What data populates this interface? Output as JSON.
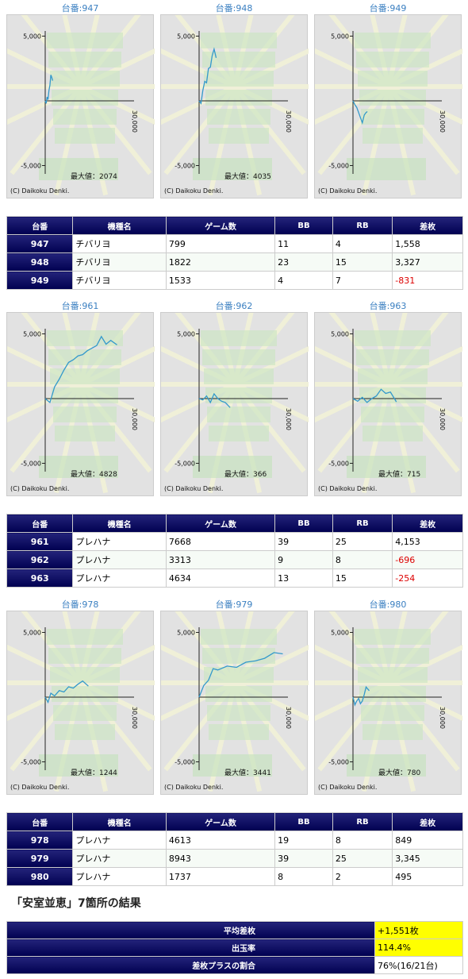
{
  "groups": [
    {
      "graphs": [
        {
          "title": "台番:947",
          "yticks": [
            {
              "value": 5000,
              "label": "5,000"
            },
            {
              "value": -5000,
              "label": "-5,000"
            }
          ],
          "x_label": "30,000",
          "max_label": "最大値：2074",
          "copyright": "(C) Daikoku Denki.",
          "x": [
            0,
            100,
            200,
            300,
            400,
            500,
            600,
            700,
            799
          ],
          "values": [
            0,
            -200,
            300,
            100,
            800,
            1200,
            2000,
            1800,
            1558
          ]
        },
        {
          "title": "台番:948",
          "yticks": [
            {
              "value": 5000,
              "label": "5,000"
            },
            {
              "value": -5000,
              "label": "-5,000"
            }
          ],
          "x_label": "30,000",
          "max_label": "最大値：4035",
          "copyright": "(C) Daikoku Denki.",
          "x": [
            0,
            200,
            400,
            600,
            800,
            1000,
            1200,
            1400,
            1600,
            1822
          ],
          "values": [
            0,
            -200,
            800,
            1500,
            1400,
            2500,
            2600,
            3500,
            4000,
            3327
          ]
        },
        {
          "title": "台番:949",
          "yticks": [
            {
              "value": 5000,
              "label": "5,000"
            },
            {
              "value": -5000,
              "label": "-5,000"
            }
          ],
          "x_label": "30,000",
          "copyright": "(C) Daikoku Denki.",
          "x": [
            0,
            200,
            400,
            600,
            800,
            1000,
            1200,
            1400,
            1533
          ],
          "values": [
            0,
            -300,
            -500,
            -900,
            -1300,
            -1700,
            -1100,
            -900,
            -831
          ]
        }
      ],
      "table": {
        "header": [
          "台番",
          "機種名",
          "ゲーム数",
          "BB",
          "RB",
          "差枚"
        ],
        "rows": [
          [
            "947",
            "チバリヨ",
            "799",
            "11",
            "4",
            "1,558"
          ],
          [
            "948",
            "チバリヨ",
            "1822",
            "23",
            "15",
            "3,327"
          ],
          [
            "949",
            "チバリヨ",
            "1533",
            "4",
            "7",
            "-831"
          ]
        ]
      }
    },
    {
      "graphs": [
        {
          "title": "台番:961",
          "yticks": [
            {
              "value": 5000,
              "label": "5,000"
            },
            {
              "value": -5000,
              "label": "-5,000"
            }
          ],
          "x_label": "30,000",
          "max_label": "最大値：4828",
          "copyright": "(C) Daikoku Denki.",
          "x": [
            0,
            500,
            1000,
            1500,
            2000,
            2500,
            3000,
            3500,
            4000,
            4500,
            5000,
            5500,
            6000,
            6500,
            7000,
            7668
          ],
          "values": [
            0,
            -300,
            900,
            1500,
            2200,
            2800,
            3000,
            3300,
            3400,
            3700,
            3900,
            4100,
            4800,
            4200,
            4500,
            4153
          ]
        },
        {
          "title": "台番:962",
          "yticks": [
            {
              "value": 5000,
              "label": "5,000"
            },
            {
              "value": -5000,
              "label": "-5,000"
            }
          ],
          "x_label": "30,000",
          "max_label": "最大値：366",
          "copyright": "(C) Daikoku Denki.",
          "x": [
            0,
            400,
            800,
            1200,
            1600,
            2000,
            2400,
            2800,
            3313
          ],
          "values": [
            0,
            -100,
            200,
            -300,
            366,
            0,
            -200,
            -300,
            -696
          ]
        },
        {
          "title": "台番:963",
          "yticks": [
            {
              "value": 5000,
              "label": "5,000"
            },
            {
              "value": -5000,
              "label": "-5,000"
            }
          ],
          "x_label": "30,000",
          "max_label": "最大値：715",
          "copyright": "(C) Daikoku Denki.",
          "x": [
            0,
            500,
            1000,
            1500,
            2000,
            2500,
            3000,
            3500,
            4000,
            4634
          ],
          "values": [
            0,
            -200,
            100,
            -300,
            0,
            200,
            715,
            400,
            500,
            -254
          ]
        }
      ],
      "table": {
        "header": [
          "台番",
          "機種名",
          "ゲーム数",
          "BB",
          "RB",
          "差枚"
        ],
        "rows": [
          [
            "961",
            "プレハナ",
            "7668",
            "39",
            "25",
            "4,153"
          ],
          [
            "962",
            "プレハナ",
            "3313",
            "9",
            "8",
            "-696"
          ],
          [
            "963",
            "プレハナ",
            "4634",
            "13",
            "15",
            "-254"
          ]
        ]
      }
    },
    {
      "graphs": [
        {
          "title": "台番:978",
          "yticks": [
            {
              "value": 5000,
              "label": "5,000"
            },
            {
              "value": -5000,
              "label": "-5,000"
            }
          ],
          "x_label": "30,000",
          "max_label": "最大値：1244",
          "copyright": "(C) Daikoku Denki.",
          "x": [
            0,
            300,
            600,
            1000,
            1500,
            2000,
            2500,
            3000,
            3500,
            4000,
            4613
          ],
          "values": [
            0,
            -400,
            300,
            100,
            500,
            400,
            800,
            700,
            1000,
            1244,
            849
          ]
        },
        {
          "title": "台番:979",
          "yticks": [
            {
              "value": 5000,
              "label": "5,000"
            },
            {
              "value": -5000,
              "label": "-5,000"
            }
          ],
          "x_label": "30,000",
          "max_label": "最大値：3441",
          "copyright": "(C) Daikoku Denki.",
          "x": [
            0,
            500,
            1000,
            1500,
            2000,
            3000,
            4000,
            5000,
            6000,
            7000,
            8000,
            8943
          ],
          "values": [
            0,
            900,
            1300,
            2200,
            2100,
            2400,
            2300,
            2700,
            2800,
            3000,
            3441,
            3345
          ]
        },
        {
          "title": "台番:980",
          "yticks": [
            {
              "value": 5000,
              "label": "5,000"
            },
            {
              "value": -5000,
              "label": "-5,000"
            }
          ],
          "x_label": "30,000",
          "max_label": "最大値：780",
          "copyright": "(C) Daikoku Denki.",
          "x": [
            0,
            200,
            400,
            600,
            800,
            1000,
            1200,
            1400,
            1737
          ],
          "values": [
            0,
            -600,
            -300,
            -100,
            -500,
            -300,
            200,
            780,
            495
          ]
        }
      ],
      "table": {
        "header": [
          "台番",
          "機種名",
          "ゲーム数",
          "BB",
          "RB",
          "差枚"
        ],
        "rows": [
          [
            "978",
            "プレハナ",
            "4613",
            "19",
            "8",
            "849"
          ],
          [
            "979",
            "プレハナ",
            "8943",
            "39",
            "25",
            "3,345"
          ],
          [
            "980",
            "プレハナ",
            "1737",
            "8",
            "2",
            "495"
          ]
        ]
      }
    }
  ],
  "summary": {
    "title": "「安室並恵」7箇所の結果",
    "rows": [
      [
        "平均差枚",
        "+1,551枚"
      ],
      [
        "出玉率",
        "114.4%"
      ],
      [
        "差枚プラスの割合",
        "76%(16/21台)"
      ]
    ]
  }
}
